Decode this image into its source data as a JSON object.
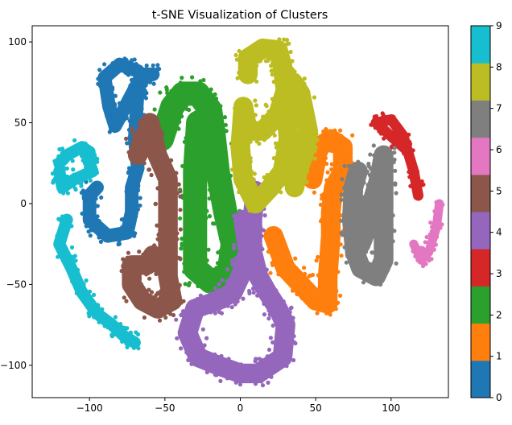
{
  "chart_data": {
    "type": "scatter",
    "title": "t-SNE Visualization of Clusters",
    "xlabel": "",
    "ylabel": "",
    "xlim": [
      -138,
      138
    ],
    "ylim": [
      -120,
      110
    ],
    "xticks": [
      -100,
      -50,
      0,
      50,
      100
    ],
    "yticks": [
      -100,
      -50,
      0,
      50,
      100
    ],
    "grid": false,
    "colorbar": {
      "min": 0,
      "max": 9,
      "ticks": [
        0,
        1,
        2,
        3,
        4,
        5,
        6,
        7,
        8,
        9
      ],
      "colors": [
        "#1f77b4",
        "#ff7f0e",
        "#2ca02c",
        "#d62728",
        "#9467bd",
        "#8c564b",
        "#e377c2",
        "#7f7f7f",
        "#bcbd22",
        "#17becf"
      ]
    },
    "series": [
      {
        "label": 0,
        "width": 9,
        "path": [
          [
            -68,
            82
          ],
          [
            -80,
            86
          ],
          [
            -90,
            78
          ],
          [
            -87,
            60
          ],
          [
            -83,
            48
          ],
          [
            -65,
            80
          ],
          [
            -58,
            80
          ],
          [
            -65,
            78
          ],
          [
            -68,
            70
          ],
          [
            -70,
            40
          ],
          [
            -68,
            22
          ],
          [
            -72,
            10
          ],
          [
            -72,
            -5
          ],
          [
            -75,
            -18
          ],
          [
            -88,
            -20
          ],
          [
            -100,
            -10
          ],
          [
            -100,
            5
          ],
          [
            -95,
            10
          ]
        ]
      },
      {
        "label": 1,
        "width": 13,
        "path": [
          [
            48,
            15
          ],
          [
            52,
            35
          ],
          [
            60,
            40
          ],
          [
            68,
            35
          ],
          [
            68,
            20
          ],
          [
            62,
            10
          ],
          [
            60,
            -5
          ],
          [
            60,
            -20
          ],
          [
            58,
            -45
          ],
          [
            58,
            -62
          ],
          [
            50,
            -60
          ],
          [
            40,
            -50
          ],
          [
            30,
            -40
          ],
          [
            22,
            -20
          ]
        ]
      },
      {
        "label": 2,
        "width": 16,
        "path": [
          [
            -52,
            40
          ],
          [
            -45,
            60
          ],
          [
            -38,
            68
          ],
          [
            -28,
            68
          ],
          [
            -20,
            58
          ],
          [
            -18,
            45
          ],
          [
            -15,
            20
          ],
          [
            -10,
            -5
          ],
          [
            -5,
            -25
          ],
          [
            -8,
            -45
          ],
          [
            -20,
            -48
          ],
          [
            -30,
            -40
          ],
          [
            -30,
            -10
          ],
          [
            -30,
            20
          ],
          [
            -28,
            50
          ]
        ]
      },
      {
        "label": 3,
        "width": 7,
        "path": [
          [
            108,
            35
          ],
          [
            90,
            50
          ],
          [
            100,
            52
          ],
          [
            108,
            42
          ],
          [
            115,
            20
          ],
          [
            118,
            5
          ]
        ]
      },
      {
        "label": 4,
        "width": 13,
        "path": [
          [
            10,
            8
          ],
          [
            8,
            -10
          ],
          [
            8,
            -30
          ],
          [
            12,
            -45
          ],
          [
            18,
            -55
          ],
          [
            25,
            -65
          ],
          [
            30,
            -75
          ],
          [
            28,
            -95
          ],
          [
            12,
            -105
          ],
          [
            0,
            -105
          ],
          [
            -15,
            -100
          ],
          [
            -28,
            -95
          ],
          [
            -35,
            -80
          ],
          [
            -30,
            -65
          ],
          [
            -15,
            -60
          ],
          [
            -5,
            -55
          ],
          [
            0,
            -45
          ],
          [
            5,
            -30
          ],
          [
            2,
            -10
          ]
        ]
      },
      {
        "label": 5,
        "width": 13,
        "path": [
          [
            -65,
            40
          ],
          [
            -68,
            30
          ],
          [
            -60,
            50
          ],
          [
            -55,
            30
          ],
          [
            -48,
            15
          ],
          [
            -48,
            -5
          ],
          [
            -48,
            -25
          ],
          [
            -48,
            -45
          ],
          [
            -45,
            -60
          ],
          [
            -55,
            -65
          ],
          [
            -65,
            -60
          ],
          [
            -72,
            -50
          ],
          [
            -72,
            -38
          ],
          [
            -62,
            -38
          ],
          [
            -58,
            -32
          ],
          [
            -50,
            -36
          ]
        ]
      },
      {
        "label": 6,
        "width": 6,
        "path": [
          [
            115,
            -25
          ],
          [
            120,
            -35
          ],
          [
            125,
            -30
          ],
          [
            130,
            -15
          ],
          [
            132,
            0
          ]
        ]
      },
      {
        "label": 7,
        "width": 13,
        "path": [
          [
            78,
            20
          ],
          [
            75,
            10
          ],
          [
            74,
            -10
          ],
          [
            76,
            -30
          ],
          [
            80,
            -40
          ],
          [
            90,
            -45
          ],
          [
            95,
            -35
          ],
          [
            95,
            -15
          ],
          [
            95,
            5
          ],
          [
            95,
            20
          ],
          [
            95,
            30
          ],
          [
            92,
            15
          ],
          [
            87,
            0
          ],
          [
            84,
            -15
          ],
          [
            80,
            -25
          ]
        ]
      },
      {
        "label": 8,
        "width": 13,
        "path": [
          [
            5,
            80
          ],
          [
            5,
            90
          ],
          [
            15,
            96
          ],
          [
            25,
            95
          ],
          [
            28,
            85
          ],
          [
            30,
            70
          ],
          [
            25,
            55
          ],
          [
            15,
            45
          ],
          [
            5,
            45
          ],
          [
            2,
            60
          ],
          [
            0,
            35
          ],
          [
            2,
            15
          ],
          [
            10,
            0
          ],
          [
            20,
            10
          ],
          [
            28,
            20
          ],
          [
            32,
            40
          ],
          [
            30,
            60
          ],
          [
            35,
            75
          ],
          [
            40,
            68
          ],
          [
            45,
            45
          ],
          [
            42,
            30
          ],
          [
            38,
            20
          ],
          [
            36,
            10
          ]
        ]
      },
      {
        "label": 9,
        "width": 8,
        "path": [
          [
            -115,
            -10
          ],
          [
            -120,
            -25
          ],
          [
            -112,
            -40
          ],
          [
            -105,
            -55
          ],
          [
            -95,
            -68
          ],
          [
            -85,
            -75
          ],
          [
            -77,
            -82
          ],
          [
            -70,
            -86
          ]
        ],
        "path2": [
          [
            -120,
            25
          ],
          [
            -115,
            30
          ],
          [
            -105,
            35
          ],
          [
            -100,
            32
          ],
          [
            -100,
            25
          ],
          [
            -98,
            20
          ],
          [
            -110,
            15
          ],
          [
            -118,
            10
          ],
          [
            -120,
            20
          ]
        ]
      }
    ]
  }
}
